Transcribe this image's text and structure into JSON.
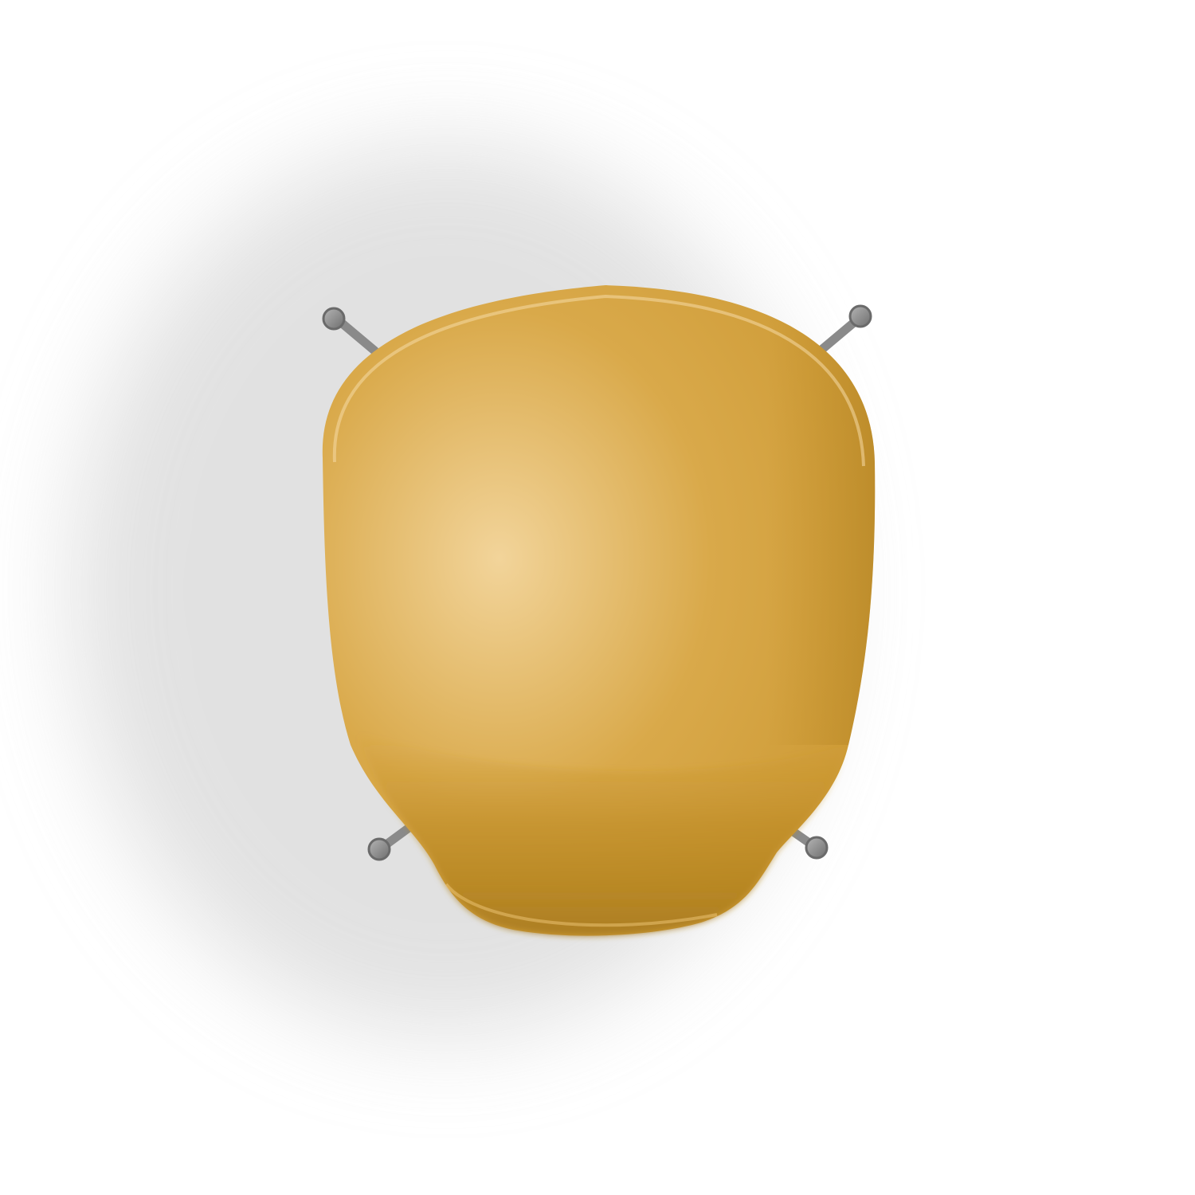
{
  "scene": {
    "subject": "chair",
    "view": "top-down",
    "background_color": "#ffffff",
    "shadow_color": "#d8d8d8"
  },
  "chair": {
    "seat_color": "#d9a94a",
    "seat_highlight_color": "#f2d49a",
    "seat_shade_color": "#a87a1c",
    "leg_color": "#8a8a8a",
    "leg_count": 4
  }
}
